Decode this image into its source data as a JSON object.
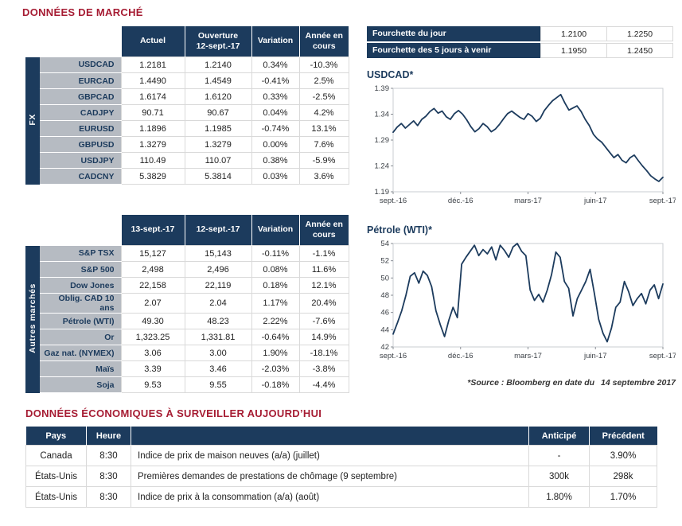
{
  "titles": {
    "market": "DONNÉES DE MARCHÉ",
    "economic": "DONNÉES ÉCONOMIQUES À SURVEILLER AUJOURD’HUI"
  },
  "range_box": {
    "rows": [
      {
        "label": "Fourchette du jour",
        "low": "1.2100",
        "high": "1.2250"
      },
      {
        "label": "Fourchette des 5 jours à venir",
        "low": "1.1950",
        "high": "1.2450"
      }
    ]
  },
  "fx_table": {
    "group": "FX",
    "headers": [
      "Actuel",
      "Ouverture\n12-sept.-17",
      "Variation",
      "Année en\ncours"
    ],
    "rows": [
      [
        "USDCAD",
        "1.2181",
        "1.2140",
        "0.34%",
        "-10.3%"
      ],
      [
        "EURCAD",
        "1.4490",
        "1.4549",
        "-0.41%",
        "2.5%"
      ],
      [
        "GBPCAD",
        "1.6174",
        "1.6120",
        "0.33%",
        "-2.5%"
      ],
      [
        "CADJPY",
        "90.71",
        "90.67",
        "0.04%",
        "4.2%"
      ],
      [
        "EURUSD",
        "1.1896",
        "1.1985",
        "-0.74%",
        "13.1%"
      ],
      [
        "GBPUSD",
        "1.3279",
        "1.3279",
        "0.00%",
        "7.6%"
      ],
      [
        "USDJPY",
        "110.49",
        "110.07",
        "0.38%",
        "-5.9%"
      ],
      [
        "CADCNY",
        "5.3829",
        "5.3814",
        "0.03%",
        "3.6%"
      ]
    ]
  },
  "markets_table": {
    "group": "Autres marchés",
    "headers": [
      "13-sept.-17",
      "12-sept.-17",
      "Variation",
      "Année en\ncours"
    ],
    "rows": [
      [
        "S&P TSX",
        "15,127",
        "15,143",
        "-0.11%",
        "-1.1%"
      ],
      [
        "S&P 500",
        "2,498",
        "2,496",
        "0.08%",
        "11.6%"
      ],
      [
        "Dow Jones",
        "22,158",
        "22,119",
        "0.18%",
        "12.1%"
      ],
      [
        "Oblig. CAD 10 ans",
        "2.07",
        "2.04",
        "1.17%",
        "20.4%"
      ],
      [
        "Pétrole (WTI)",
        "49.30",
        "48.23",
        "2.22%",
        "-7.6%"
      ],
      [
        "Or",
        "1,323.25",
        "1,331.81",
        "-0.64%",
        "14.9%"
      ],
      [
        "Gaz nat. (NYMEX)",
        "3.06",
        "3.00",
        "1.90%",
        "-18.1%"
      ],
      [
        "Maïs",
        "3.39",
        "3.46",
        "-2.03%",
        "-3.8%"
      ],
      [
        "Soja",
        "9.53",
        "9.55",
        "-0.18%",
        "-4.4%"
      ]
    ]
  },
  "source_note": "*Source : Bloomberg en date du",
  "source_date": "14 septembre 2017",
  "chart_data": [
    {
      "type": "line",
      "title": "USDCAD*",
      "x_ticks": [
        "sept.-16",
        "déc.-16",
        "mars-17",
        "juin-17",
        "sept.-17"
      ],
      "y_ticks": [
        "1.19",
        "1.24",
        "1.29",
        "1.34",
        "1.39"
      ],
      "ylim": [
        1.19,
        1.39
      ],
      "grid": false,
      "legend": "none",
      "line_color": "#1c3b5d",
      "series": [
        {
          "name": "USDCAD",
          "values": [
            1.305,
            1.315,
            1.322,
            1.313,
            1.32,
            1.327,
            1.318,
            1.33,
            1.336,
            1.345,
            1.351,
            1.342,
            1.346,
            1.335,
            1.33,
            1.341,
            1.347,
            1.34,
            1.329,
            1.316,
            1.306,
            1.312,
            1.322,
            1.316,
            1.306,
            1.311,
            1.32,
            1.331,
            1.341,
            1.346,
            1.34,
            1.334,
            1.33,
            1.341,
            1.336,
            1.326,
            1.332,
            1.347,
            1.357,
            1.366,
            1.372,
            1.378,
            1.362,
            1.348,
            1.352,
            1.356,
            1.345,
            1.33,
            1.318,
            1.301,
            1.292,
            1.286,
            1.276,
            1.266,
            1.256,
            1.262,
            1.251,
            1.246,
            1.256,
            1.261,
            1.25,
            1.24,
            1.231,
            1.221,
            1.215,
            1.21,
            1.218
          ]
        }
      ]
    },
    {
      "type": "line",
      "title": "Pétrole (WTI)*",
      "x_ticks": [
        "sept.-16",
        "déc.-16",
        "mars-17",
        "juin-17",
        "sept.-17"
      ],
      "y_ticks": [
        "42",
        "44",
        "46",
        "48",
        "50",
        "52",
        "54"
      ],
      "ylim": [
        42,
        54
      ],
      "grid": false,
      "legend": "none",
      "line_color": "#1c3b5d",
      "series": [
        {
          "name": "WTI",
          "values": [
            43.5,
            44.8,
            46.2,
            48.0,
            50.2,
            50.6,
            49.4,
            50.8,
            50.3,
            49.0,
            46.2,
            44.6,
            43.2,
            45.1,
            46.6,
            45.4,
            51.6,
            52.4,
            53.1,
            53.8,
            52.6,
            53.3,
            52.8,
            53.6,
            52.1,
            53.8,
            53.2,
            52.4,
            53.6,
            54.0,
            53.1,
            52.6,
            48.6,
            47.4,
            48.1,
            47.2,
            48.6,
            50.4,
            53.0,
            52.4,
            49.6,
            48.8,
            45.6,
            47.6,
            48.6,
            49.6,
            51.0,
            48.2,
            45.2,
            43.6,
            42.6,
            44.2,
            46.6,
            47.2,
            49.6,
            48.4,
            46.8,
            47.6,
            48.2,
            47.0,
            48.6,
            49.2,
            47.6,
            49.3
          ]
        }
      ]
    }
  ],
  "econ_table": {
    "headers": [
      "Pays",
      "Heure",
      "",
      "Anticipé",
      "Précédent"
    ],
    "rows": [
      [
        "Canada",
        "8:30",
        "Indice de prix de maison neuves (a/a) (juillet)",
        "-",
        "3.90%"
      ],
      [
        "États-Unis",
        "8:30",
        "Premières demandes de prestations de chômage (9 septembre)",
        "300k",
        "298k"
      ],
      [
        "États-Unis",
        "8:30",
        "Indice de prix à la consommation (a/a) (août)",
        "1.80%",
        "1.70%"
      ]
    ]
  },
  "colors": {
    "navy": "#1c3b5d",
    "title_red": "#a61c33",
    "positive": "#009a44",
    "negative": "#e5232b",
    "label_gray": "#b6bbc2",
    "border_gray": "#d9d9d9"
  }
}
